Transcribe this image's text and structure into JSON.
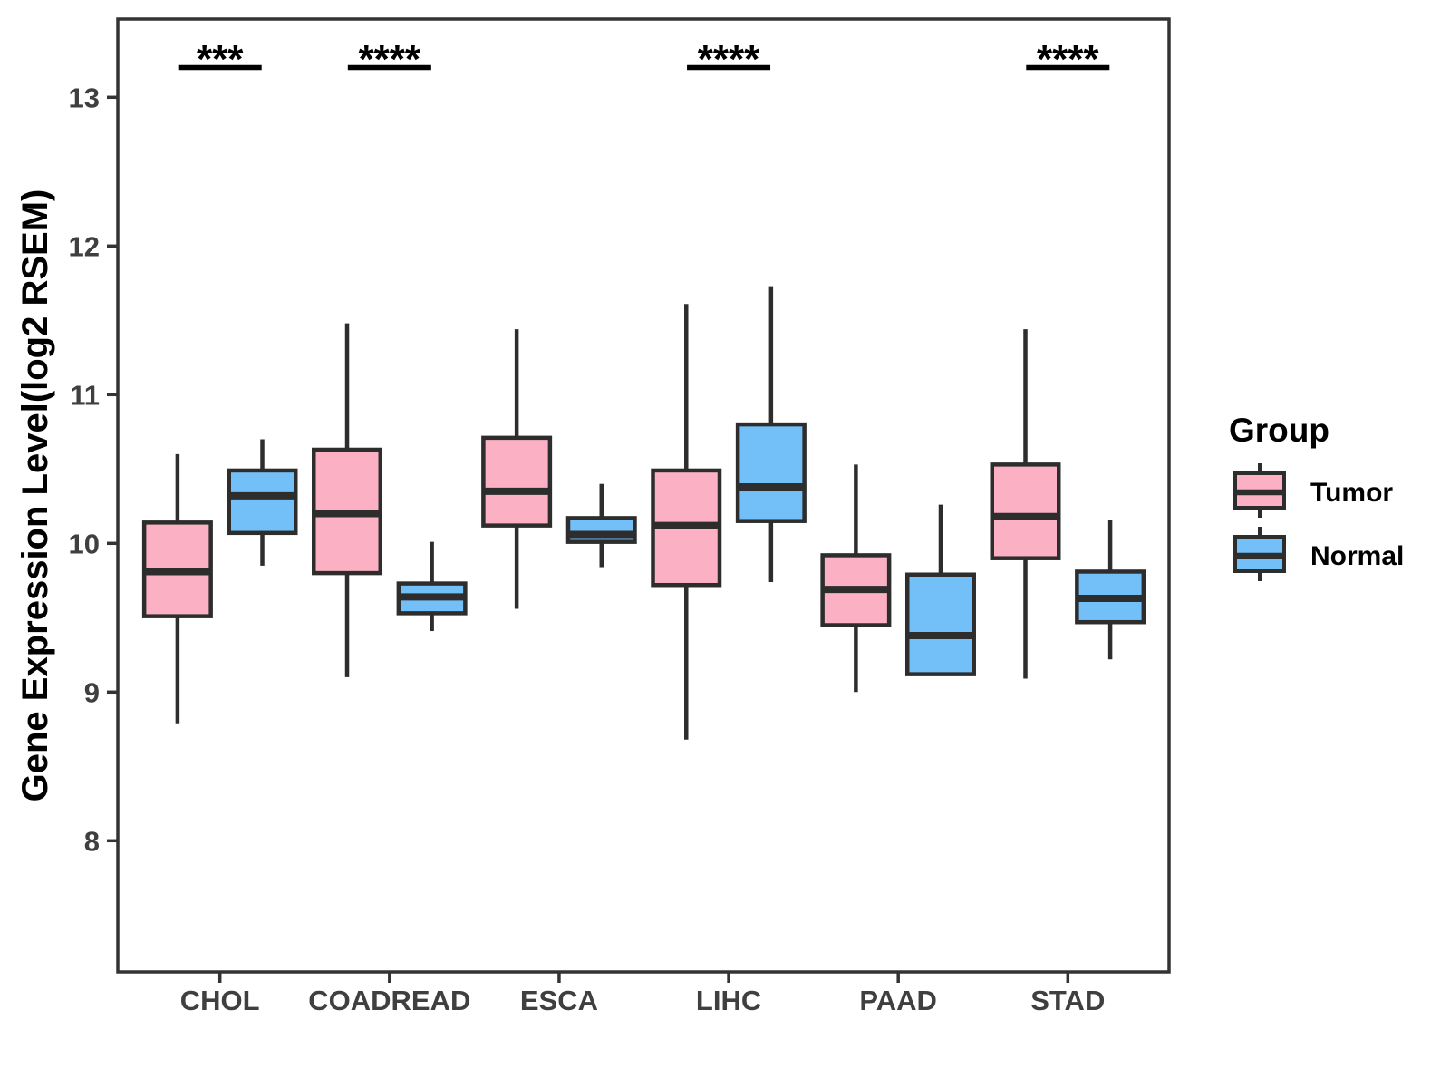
{
  "figure": {
    "ylabel": "Gene Expression Level(log2 RSEM)"
  },
  "chart_data": {
    "type": "boxplot",
    "title": "",
    "xlabel": "",
    "ylabel": "Gene Expression Level(log2 RSEM)",
    "categories": [
      "CHOL",
      "COADREAD",
      "ESCA",
      "LIHC",
      "PAAD",
      "STAD"
    ],
    "y_ticks": [
      8,
      9,
      10,
      11,
      12,
      13
    ],
    "ylim": [
      7.12,
      13.53
    ],
    "grid": false,
    "legend_position": "right",
    "legend": {
      "title": "Group",
      "entries": [
        {
          "label": "Tumor",
          "color": "#FBB1C3"
        },
        {
          "label": "Normal",
          "color": "#73BFF7"
        }
      ]
    },
    "colors": {
      "tumor_fill": "#FBB1C3",
      "normal_fill": "#73BFF7",
      "box_stroke": "#2D2D2D",
      "axis_stroke": "#333333",
      "tick_label": "#3F3F3F",
      "annotation": "#000000"
    },
    "series": [
      {
        "name": "Tumor",
        "color": "#FBB1C3",
        "boxes": [
          {
            "category": "CHOL",
            "low": 8.79,
            "q1": 9.51,
            "median": 9.81,
            "q3": 10.14,
            "high": 10.6
          },
          {
            "category": "COADREAD",
            "low": 9.1,
            "q1": 9.8,
            "median": 10.2,
            "q3": 10.63,
            "high": 11.48
          },
          {
            "category": "ESCA",
            "low": 9.56,
            "q1": 10.12,
            "median": 10.35,
            "q3": 10.71,
            "high": 11.44
          },
          {
            "category": "LIHC",
            "low": 8.68,
            "q1": 9.72,
            "median": 10.12,
            "q3": 10.49,
            "high": 11.61
          },
          {
            "category": "PAAD",
            "low": 9.0,
            "q1": 9.45,
            "median": 9.69,
            "q3": 9.92,
            "high": 10.53
          },
          {
            "category": "STAD",
            "low": 9.09,
            "q1": 9.9,
            "median": 10.18,
            "q3": 10.53,
            "high": 11.44
          }
        ]
      },
      {
        "name": "Normal",
        "color": "#73BFF7",
        "boxes": [
          {
            "category": "CHOL",
            "low": 9.85,
            "q1": 10.07,
            "median": 10.32,
            "q3": 10.49,
            "high": 10.7
          },
          {
            "category": "COADREAD",
            "low": 9.41,
            "q1": 9.53,
            "median": 9.64,
            "q3": 9.73,
            "high": 10.01
          },
          {
            "category": "ESCA",
            "low": 9.84,
            "q1": 10.01,
            "median": 10.06,
            "q3": 10.17,
            "high": 10.4
          },
          {
            "category": "LIHC",
            "low": 9.74,
            "q1": 10.15,
            "median": 10.38,
            "q3": 10.8,
            "high": 11.73
          },
          {
            "category": "PAAD",
            "low": 9.12,
            "q1": 9.12,
            "median": 9.38,
            "q3": 9.79,
            "high": 10.26
          },
          {
            "category": "STAD",
            "low": 9.22,
            "q1": 9.47,
            "median": 9.63,
            "q3": 9.81,
            "high": 10.16
          }
        ]
      }
    ],
    "annotations": [
      {
        "category": "CHOL",
        "label": "***"
      },
      {
        "category": "COADREAD",
        "label": "****"
      },
      {
        "category": "LIHC",
        "label": "****"
      },
      {
        "category": "STAD",
        "label": "****"
      }
    ]
  }
}
